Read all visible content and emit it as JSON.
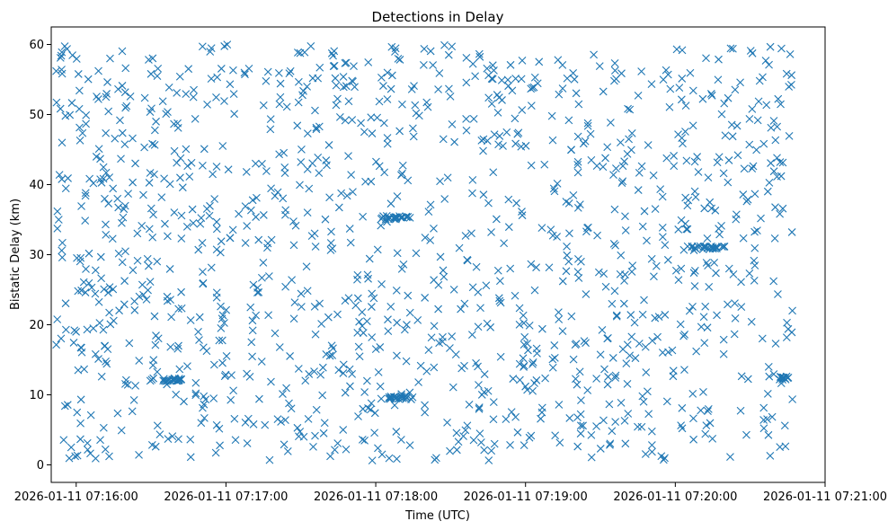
{
  "chart_data": {
    "type": "scatter",
    "title": "Detections in Delay",
    "xlabel": "Time (UTC)",
    "ylabel": "Bistatic Delay (km)",
    "marker": "x",
    "color": "#1f77b4",
    "xlim_seconds": [
      -10,
      300
    ],
    "ylim": [
      -2.5,
      62.5
    ],
    "grid": false,
    "x_ticks": [
      {
        "seconds": 0,
        "label": "2026-01-11 07:16:00"
      },
      {
        "seconds": 60,
        "label": "2026-01-11 07:17:00"
      },
      {
        "seconds": 120,
        "label": "2026-01-11 07:18:00"
      },
      {
        "seconds": 180,
        "label": "2026-01-11 07:19:00"
      },
      {
        "seconds": 240,
        "label": "2026-01-11 07:20:00"
      },
      {
        "seconds": 300,
        "label": "2026-01-11 07:21:00"
      }
    ],
    "y_ticks": [
      {
        "value": 0,
        "label": "0"
      },
      {
        "value": 10,
        "label": "10"
      },
      {
        "value": 20,
        "label": "20"
      },
      {
        "value": 30,
        "label": "30"
      },
      {
        "value": 40,
        "label": "40"
      },
      {
        "value": 50,
        "label": "50"
      },
      {
        "value": 60,
        "label": "60"
      }
    ],
    "series": [
      {
        "name": "detections",
        "x_start_seconds": -8,
        "x_end_seconds": 287,
        "point_count": 1400,
        "y_min": 0.5,
        "y_max": 60,
        "distribution": "approximately uniform in time and delay",
        "sample_points": [
          {
            "x": -8,
            "y": 56.2
          },
          {
            "x": -7,
            "y": 35.0
          },
          {
            "x": -6,
            "y": 58.4
          },
          {
            "x": 12,
            "y": 41.7
          },
          {
            "x": 20,
            "y": 12.1
          },
          {
            "x": 38,
            "y": 12.0
          },
          {
            "x": 58,
            "y": 19.5
          },
          {
            "x": 90,
            "y": 43.2
          },
          {
            "x": 130,
            "y": 35.3
          },
          {
            "x": 175,
            "y": 12.3
          },
          {
            "x": 203,
            "y": 5.6
          },
          {
            "x": 250,
            "y": 31.2
          },
          {
            "x": 278,
            "y": 1.3
          },
          {
            "x": 285,
            "y": 12.4
          },
          {
            "x": 286,
            "y": 58.6
          }
        ],
        "clusters": [
          {
            "x_center": 36,
            "x_width": 14,
            "y": 12.1
          },
          {
            "x_center": 128,
            "x_width": 12,
            "y": 35.3
          },
          {
            "x_center": 129,
            "x_width": 12,
            "y": 9.6
          },
          {
            "x_center": 253,
            "x_width": 14,
            "y": 31.0
          },
          {
            "x_center": 284,
            "x_width": 4,
            "y": 12.4
          }
        ]
      }
    ]
  }
}
